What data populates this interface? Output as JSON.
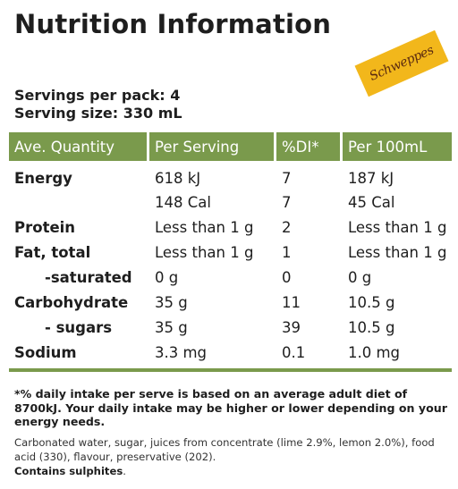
{
  "title": "Nutrition Information",
  "brand": "Schweppes",
  "servings_per_pack": "Servings per pack: 4",
  "serving_size": "Serving size: 330 mL",
  "table": {
    "headers": [
      "Ave. Quantity",
      "Per Serving",
      "%DI*",
      "Per 100mL"
    ],
    "rows": [
      {
        "label": "Energy",
        "per_serving": "618 kJ",
        "di": "7",
        "per_100": "187 kJ"
      },
      {
        "label": "",
        "per_serving": "148 Cal",
        "di": "7",
        "per_100": "45 Cal"
      },
      {
        "label": "Protein",
        "per_serving": "Less than 1 g",
        "di": "2",
        "per_100": "Less than 1 g"
      },
      {
        "label": "Fat, total",
        "per_serving": "Less than 1 g",
        "di": "1",
        "per_100": "Less than 1 g"
      },
      {
        "label": "-saturated",
        "per_serving": "0 g",
        "di": "0",
        "per_100": "0 g"
      },
      {
        "label": "Carbohydrate",
        "per_serving": "35 g",
        "di": "11",
        "per_100": "10.5 g"
      },
      {
        "label": "- sugars",
        "per_serving": "35 g",
        "di": "39",
        "per_100": "10.5 g"
      },
      {
        "label": "Sodium",
        "per_serving": "3.3 mg",
        "di": "0.1",
        "per_100": "1.0 mg"
      }
    ]
  },
  "footnote": "*% daily intake per serve is based on an average adult diet of 8700kJ. Your daily intake may be higher or lower depending on your energy needs.",
  "ingredients": "Carbonated water, sugar, juices from concentrate (lime 2.9%, lemon 2.0%), food acid (330), flavour, preservative (202).",
  "allergen": "Contains sulphites",
  "colors": {
    "header_green": "#7a9a4c",
    "brand_yellow": "#f2b71b",
    "text": "#1e1e1e"
  }
}
